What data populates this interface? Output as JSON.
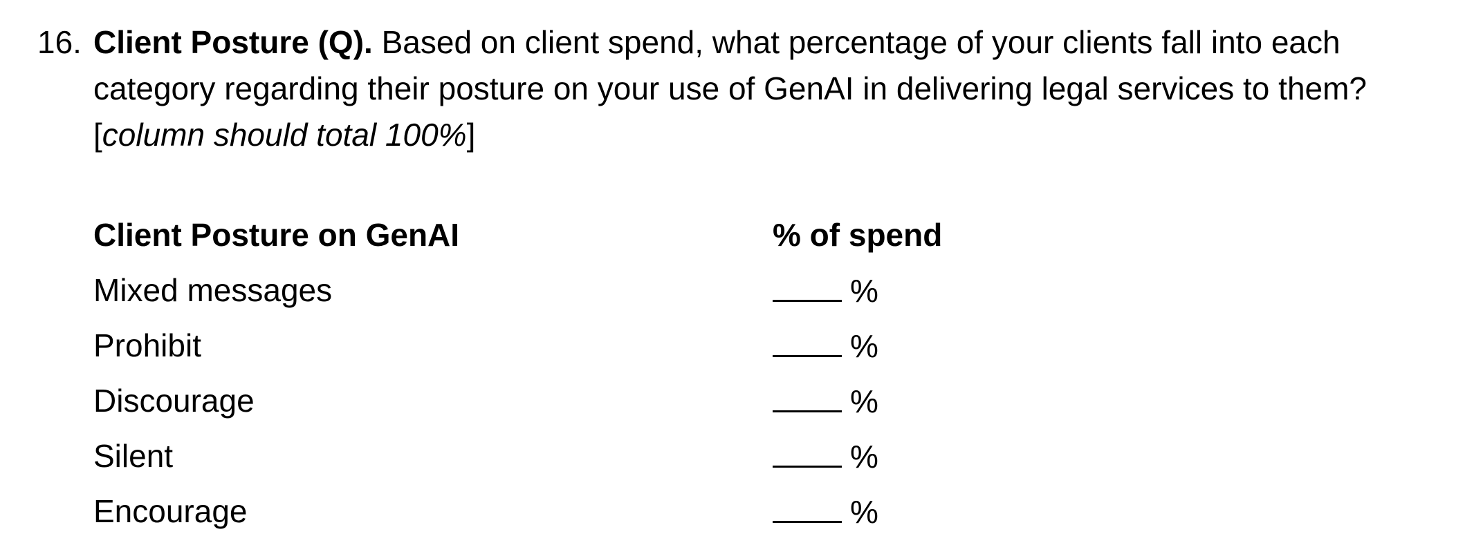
{
  "question": {
    "number": "16.",
    "title": "Client Posture (Q).",
    "text": " Based on client spend, what percentage of your clients fall into each category regarding their posture on your use of GenAI in delivering legal services to them? [",
    "note": "column should total 100%",
    "close": "]"
  },
  "table": {
    "headers": {
      "posture": "Client Posture on GenAI",
      "spend": "% of spend"
    },
    "rows": [
      {
        "posture": "Mixed messages",
        "unit": "%"
      },
      {
        "posture": "Prohibit",
        "unit": "%"
      },
      {
        "posture": "Discourage",
        "unit": "%"
      },
      {
        "posture": "Silent",
        "unit": "%"
      },
      {
        "posture": "Encourage",
        "unit": "%"
      }
    ]
  }
}
